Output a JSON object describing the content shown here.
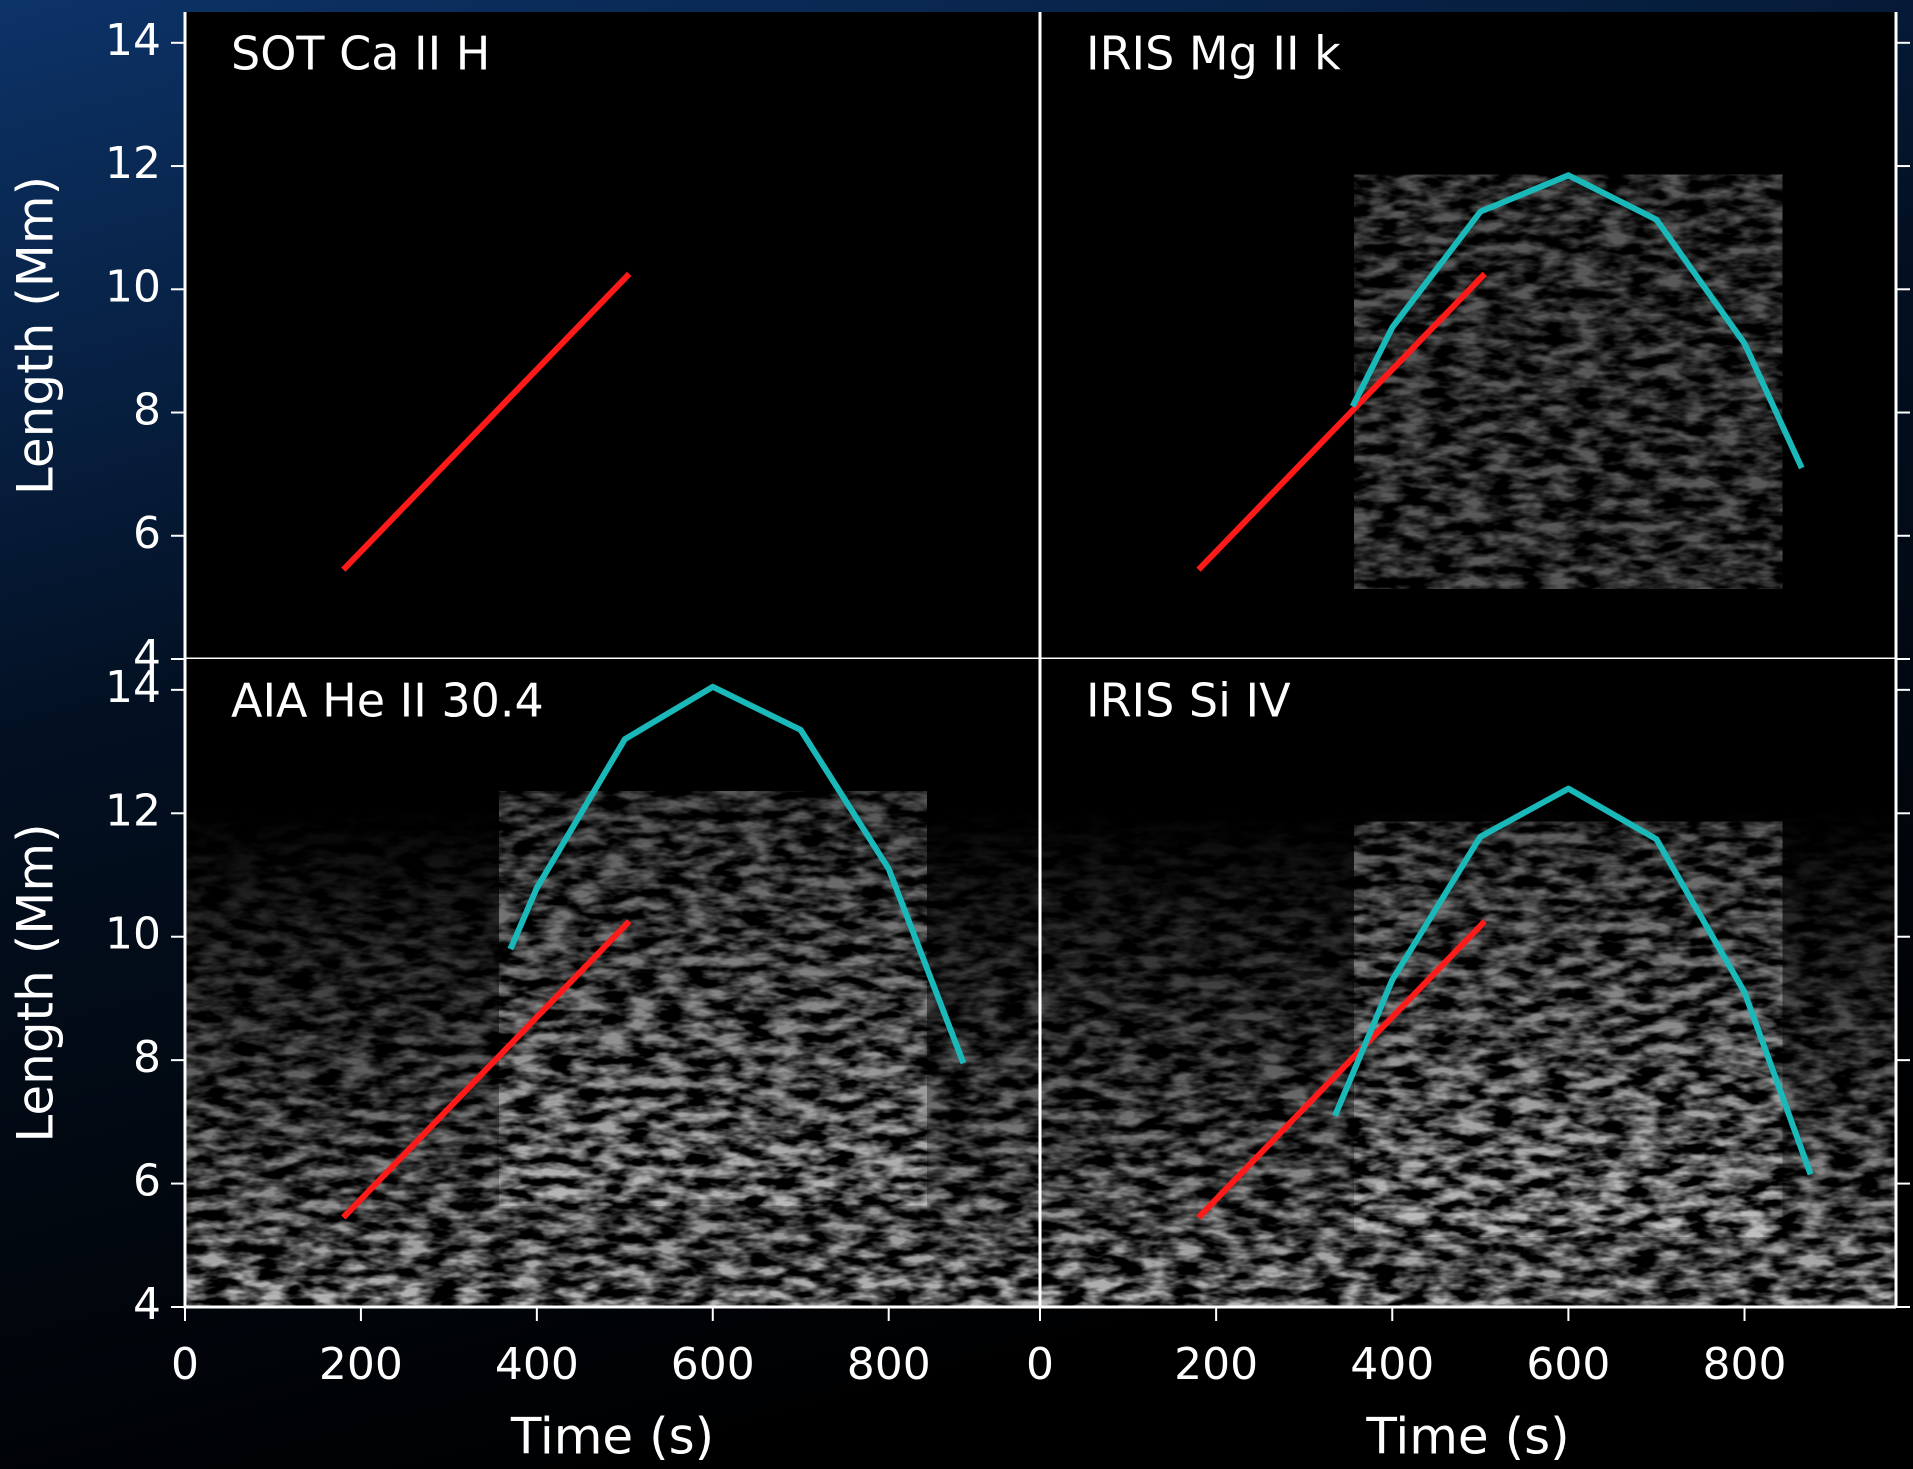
{
  "chart_data": [
    {
      "type": "line",
      "title": "SOT Ca II H",
      "y_label": "Length (Mm)",
      "xlim": [
        0,
        972
      ],
      "ylim": [
        4,
        14.5
      ],
      "yticks": [
        4,
        6,
        8,
        10,
        12,
        14
      ],
      "series": [
        {
          "color": "#ff1a1a",
          "x": [
            180,
            505
          ],
          "values": [
            5.45,
            10.25
          ]
        }
      ]
    },
    {
      "type": "line",
      "title": "IRIS Mg II k",
      "xlim": [
        0,
        972
      ],
      "ylim": [
        4,
        14.5
      ],
      "yticks": [
        4,
        6,
        8,
        10,
        12,
        14
      ],
      "series": [
        {
          "color": "#ff1a1a",
          "x": [
            180,
            505
          ],
          "values": [
            5.45,
            10.25
          ]
        },
        {
          "color": "#1ab8b8",
          "x": [
            355,
            400,
            500,
            600,
            700,
            800,
            865
          ],
          "values": [
            8.1,
            9.38,
            11.26,
            11.85,
            11.13,
            9.12,
            7.1
          ]
        }
      ]
    },
    {
      "type": "line",
      "title": "AIA He II 30.4",
      "y_label": "Length (Mm)",
      "x_label": "Time (s)",
      "xlim": [
        0,
        972
      ],
      "ylim": [
        4,
        14.5
      ],
      "yticks": [
        4,
        6,
        8,
        10,
        12,
        14
      ],
      "xticks": [
        0,
        200,
        400,
        600,
        800
      ],
      "series": [
        {
          "color": "#ff1a1a",
          "x": [
            180,
            505
          ],
          "values": [
            5.45,
            10.25
          ]
        },
        {
          "color": "#1ab8b8",
          "x": [
            370,
            400,
            500,
            600,
            700,
            800,
            885
          ],
          "values": [
            9.8,
            10.79,
            13.2,
            14.05,
            13.35,
            11.1,
            7.95
          ]
        }
      ]
    },
    {
      "type": "line",
      "title": "IRIS Si IV",
      "x_label": "Time (s)",
      "xlim": [
        0,
        972
      ],
      "ylim": [
        4,
        14.5
      ],
      "yticks": [
        4,
        6,
        8,
        10,
        12,
        14
      ],
      "xticks": [
        0,
        200,
        400,
        600,
        800
      ],
      "series": [
        {
          "color": "#ff1a1a",
          "x": [
            180,
            505
          ],
          "values": [
            5.45,
            10.25
          ]
        },
        {
          "color": "#1ab8b8",
          "x": [
            335,
            400,
            500,
            600,
            700,
            800,
            875
          ],
          "values": [
            7.1,
            9.3,
            11.62,
            12.4,
            11.58,
            9.1,
            6.15
          ]
        }
      ]
    }
  ]
}
